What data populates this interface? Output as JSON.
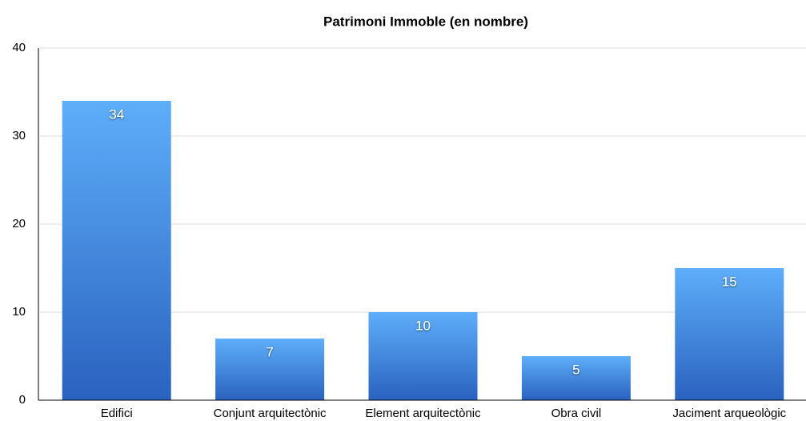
{
  "chart_data": {
    "type": "bar",
    "title": "Patrimoni Immoble (en nombre)",
    "categories": [
      "Edifici",
      "Conjunt arquitectònic",
      "Element arquitectònic",
      "Obra civil",
      "Jaciment arqueològic"
    ],
    "values": [
      34,
      7,
      10,
      5,
      15
    ],
    "color": "#3f86dc",
    "ylim": [
      0,
      40
    ],
    "yticks": [
      0,
      10,
      20,
      30,
      40
    ],
    "grid": true
  }
}
